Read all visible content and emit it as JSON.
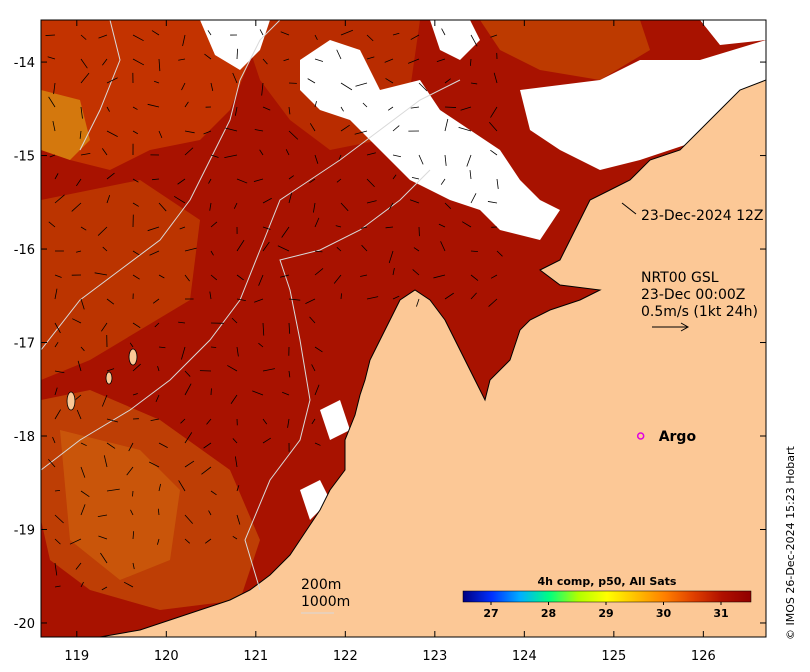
{
  "map": {
    "axes": {
      "x_ticks": [
        119,
        120,
        121,
        122,
        123,
        124,
        125,
        126
      ],
      "y_ticks": [
        -14,
        -15,
        -16,
        -17,
        -18,
        -19,
        -20
      ],
      "lon_range": [
        118.6,
        126.7
      ],
      "lat_range": [
        -20.15,
        -13.55
      ]
    },
    "colors": {
      "land": "#fcc896",
      "sst_base": "#a81200",
      "cloud": "#ffffff",
      "contour": "#d9d9d9",
      "argo_marker": "#e000e0"
    },
    "annotations": {
      "timestamp": "23-Dec-2024 12Z",
      "current_source": "NRT00 GSL",
      "current_time": "23-Dec 00:00Z",
      "current_scale": "0.5m/s (1kt 24h)",
      "argo_label": "Argo",
      "contour_200": "200m",
      "contour_1000": "1000m"
    },
    "argo": {
      "lon": 125.3,
      "lat": -18.0
    },
    "colorbar": {
      "title": "4h comp, p50, All Sats",
      "ticks": [
        "27",
        "28",
        "29",
        "30",
        "31"
      ],
      "colors": [
        "#000080",
        "#0030ff",
        "#00b0ff",
        "#00ff80",
        "#b0ff00",
        "#ffff00",
        "#ffc000",
        "#ff8000",
        "#e04000",
        "#b01000",
        "#900000"
      ]
    },
    "copyright": "© IMOS 26-Dec-2024 15:23 Hobart"
  }
}
